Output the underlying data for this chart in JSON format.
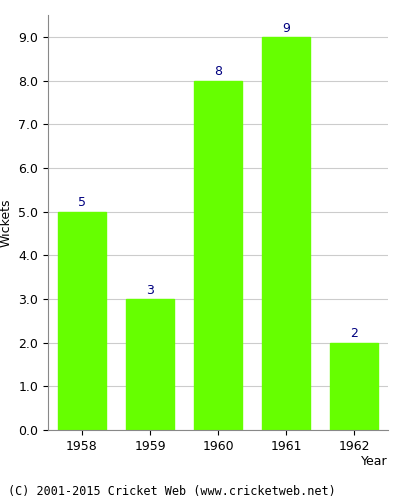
{
  "years": [
    "1958",
    "1959",
    "1960",
    "1961",
    "1962"
  ],
  "values": [
    5,
    3,
    8,
    9,
    2
  ],
  "bar_color": "#66ff00",
  "bar_edge_color": "#66ff00",
  "label_color": "#000080",
  "xlabel": "Year",
  "ylabel": "Wickets",
  "ylim": [
    0,
    9.5
  ],
  "yticks": [
    0.0,
    1.0,
    2.0,
    3.0,
    4.0,
    5.0,
    6.0,
    7.0,
    8.0,
    9.0
  ],
  "grid_color": "#cccccc",
  "background_color": "#ffffff",
  "footer_text": "(C) 2001-2015 Cricket Web (www.cricketweb.net)",
  "label_fontsize": 9,
  "axis_fontsize": 9,
  "footer_fontsize": 8.5
}
